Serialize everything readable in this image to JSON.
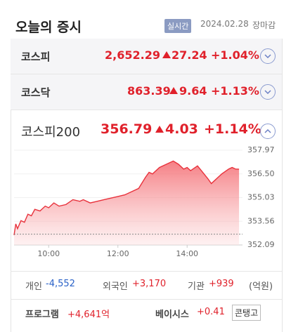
{
  "header": {
    "title": "오늘의 증시",
    "badge": "실시간",
    "date": "2024.02.28",
    "status": "장마감"
  },
  "indices": [
    {
      "name": "코스피",
      "value": "2,652.29",
      "change": "27.24",
      "percent": "+1.04%"
    },
    {
      "name": "코스닥",
      "value": "863.39",
      "change": "9.64",
      "percent": "+1.13%"
    }
  ],
  "featured": {
    "name": "코스피200",
    "value": "356.79",
    "change": "4.03",
    "percent": "+1.14%"
  },
  "chart_data": {
    "type": "area",
    "color": "#e8323c",
    "x": [
      9.0,
      9.05,
      9.1,
      9.2,
      9.3,
      9.4,
      9.5,
      9.6,
      9.75,
      9.9,
      10.0,
      10.15,
      10.3,
      10.5,
      10.7,
      10.9,
      11.0,
      11.2,
      11.4,
      11.6,
      11.8,
      12.0,
      12.2,
      12.4,
      12.6,
      12.8,
      12.9,
      13.0,
      13.2,
      13.4,
      13.6,
      13.75,
      13.9,
      14.0,
      14.1,
      14.3,
      14.45,
      14.6,
      14.7,
      14.8,
      15.0,
      15.2,
      15.3,
      15.4,
      15.5
    ],
    "values": [
      352.7,
      353.4,
      353.1,
      353.6,
      353.5,
      354.0,
      353.9,
      354.3,
      354.2,
      354.5,
      354.4,
      354.7,
      354.5,
      354.6,
      354.9,
      354.8,
      354.9,
      354.7,
      354.8,
      354.9,
      355.0,
      355.1,
      355.2,
      355.4,
      355.6,
      356.3,
      356.6,
      356.5,
      356.9,
      357.1,
      357.3,
      357.1,
      356.8,
      356.9,
      356.7,
      357.0,
      356.6,
      356.2,
      355.9,
      356.1,
      356.5,
      356.8,
      356.9,
      356.8,
      356.79
    ],
    "reference_line": 352.76,
    "xlim": [
      9.0,
      15.6
    ],
    "ylim": [
      352.09,
      357.97
    ],
    "xticks": [
      {
        "value": 10,
        "label": "10:00"
      },
      {
        "value": 12,
        "label": "12:00"
      },
      {
        "value": 14,
        "label": "14:00"
      }
    ],
    "yticks": [
      352.09,
      353.56,
      355.03,
      {
        "value": 356.5,
        "label": "356.50"
      },
      357.97
    ]
  },
  "investors": {
    "items": [
      {
        "label": "개인",
        "value": "-4,552"
      },
      {
        "label": "외국인",
        "value": "+3,170"
      },
      {
        "label": "기관",
        "value": "+939"
      }
    ],
    "unit": "(억원)"
  },
  "program": {
    "label": "프로그램",
    "value": "+4,641억",
    "basis_label": "베이시스",
    "basis_value": "+0.41",
    "state": "콘탱고"
  }
}
